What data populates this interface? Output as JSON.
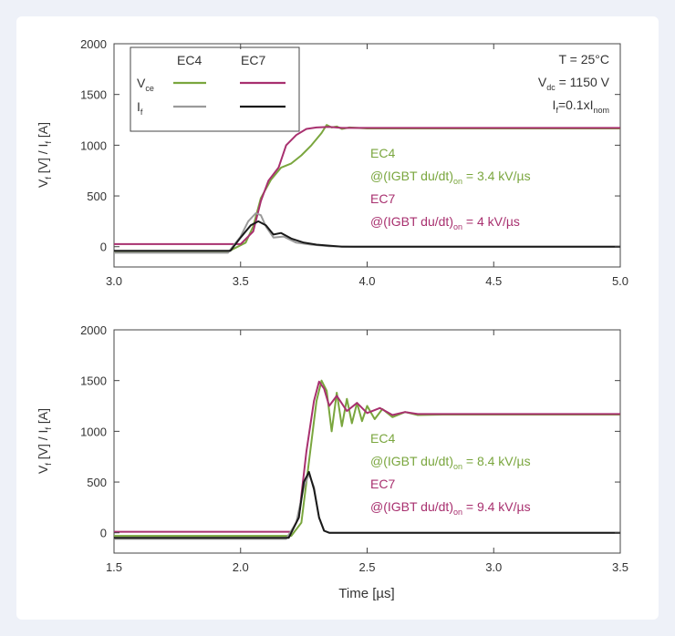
{
  "colors": {
    "ec4": "#7aa63e",
    "ec7": "#a8306f",
    "if_ec4": "#9a9a9a",
    "if_ec7": "#1a1a1a",
    "axis": "#444444"
  },
  "legend": {
    "col_ec4": "EC4",
    "col_ec7": "EC7",
    "row_vce_main": "V",
    "row_vce_sub": "ce",
    "row_if_main": "I",
    "row_if_sub": "f"
  },
  "conditions": {
    "temp": "T = 25°C",
    "vdc_main": "V",
    "vdc_sub": "dc",
    "vdc_val": " = 1150 V",
    "if_main": "I",
    "if_sub": "f",
    "if_mid": "=0.1xI",
    "if_sub2": "nom"
  },
  "chart_data": [
    {
      "type": "line",
      "xlabel": "",
      "ylabel_parts": [
        "V",
        "f",
        " [V] / I",
        "f",
        " [A]"
      ],
      "xlim": [
        3.0,
        5.0
      ],
      "ylim": [
        -200,
        2000
      ],
      "xticks": [
        3.0,
        3.5,
        4.0,
        4.5,
        5.0
      ],
      "xtick_labels": [
        "3.0",
        "3.5",
        "4.0",
        "4.5",
        "5.0"
      ],
      "yticks": [
        0,
        500,
        1000,
        1500,
        2000
      ],
      "ytick_labels": [
        "0",
        "500",
        "1000",
        "1500",
        "2000"
      ],
      "annotations": {
        "ec4_name": "EC4",
        "ec4_rate_pre": "@(IGBT du/dt)",
        "ec4_rate_sub": "on",
        "ec4_rate_post": " = 3.4 kV/µs",
        "ec7_name": "EC7",
        "ec7_rate_pre": "@(IGBT du/dt)",
        "ec7_rate_sub": "on",
        "ec7_rate_post": " = 4 kV/µs"
      },
      "series": [
        {
          "name": "Vce EC4",
          "color_key": "ec4",
          "x": [
            3.0,
            3.45,
            3.52,
            3.55,
            3.58,
            3.62,
            3.66,
            3.7,
            3.74,
            3.78,
            3.82,
            3.84,
            3.86,
            3.88,
            3.9,
            3.93,
            4.0,
            5.0
          ],
          "y": [
            -50,
            -50,
            40,
            200,
            480,
            660,
            780,
            820,
            900,
            1000,
            1120,
            1200,
            1175,
            1185,
            1160,
            1175,
            1165,
            1165
          ]
        },
        {
          "name": "Vce EC7",
          "color_key": "ec7",
          "x": [
            3.0,
            3.5,
            3.55,
            3.58,
            3.61,
            3.65,
            3.68,
            3.72,
            3.76,
            3.8,
            3.85,
            3.9,
            4.0,
            5.0
          ],
          "y": [
            25,
            25,
            150,
            450,
            650,
            780,
            1000,
            1100,
            1160,
            1175,
            1180,
            1170,
            1170,
            1170
          ]
        },
        {
          "name": "If EC4",
          "color_key": "if_ec4",
          "x": [
            3.0,
            3.45,
            3.5,
            3.53,
            3.56,
            3.58,
            3.6,
            3.63,
            3.67,
            3.72,
            3.78,
            3.85,
            3.95,
            5.0
          ],
          "y": [
            -60,
            -60,
            100,
            250,
            330,
            310,
            200,
            90,
            100,
            40,
            20,
            5,
            0,
            0
          ]
        },
        {
          "name": "If EC7",
          "color_key": "if_ec7",
          "x": [
            3.0,
            3.46,
            3.5,
            3.54,
            3.57,
            3.6,
            3.63,
            3.66,
            3.7,
            3.75,
            3.8,
            3.9,
            5.0
          ],
          "y": [
            -40,
            -40,
            90,
            210,
            250,
            210,
            120,
            135,
            80,
            40,
            20,
            0,
            0
          ]
        }
      ]
    },
    {
      "type": "line",
      "xlabel": "Time [µs]",
      "ylabel_parts": [
        "V",
        "f",
        " [V] / I",
        "f",
        " [A]"
      ],
      "xlim": [
        1.5,
        3.5
      ],
      "ylim": [
        -200,
        2000
      ],
      "xticks": [
        1.5,
        2.0,
        2.5,
        3.0,
        3.5
      ],
      "xtick_labels": [
        "1.5",
        "2.0",
        "2.5",
        "3.0",
        "3.5"
      ],
      "yticks": [
        0,
        500,
        1000,
        1500,
        2000
      ],
      "ytick_labels": [
        "0",
        "500",
        "1000",
        "1500",
        "2000"
      ],
      "annotations": {
        "ec4_name": "EC4",
        "ec4_rate_pre": "@(IGBT du/dt)",
        "ec4_rate_sub": "on",
        "ec4_rate_post": " = 8.4 kV/µs",
        "ec7_name": "EC7",
        "ec7_rate_pre": "@(IGBT du/dt)",
        "ec7_rate_sub": "on",
        "ec7_rate_post": " = 9.4 kV/µs"
      },
      "series": [
        {
          "name": "Vce EC4",
          "color_key": "ec4",
          "x": [
            1.5,
            2.2,
            2.24,
            2.27,
            2.3,
            2.32,
            2.34,
            2.36,
            2.38,
            2.4,
            2.42,
            2.44,
            2.46,
            2.48,
            2.5,
            2.53,
            2.56,
            2.6,
            2.65,
            2.7,
            2.8,
            3.5
          ],
          "y": [
            -30,
            -30,
            100,
            700,
            1300,
            1500,
            1400,
            1000,
            1380,
            1050,
            1320,
            1080,
            1280,
            1100,
            1250,
            1120,
            1220,
            1140,
            1190,
            1160,
            1165,
            1165
          ]
        },
        {
          "name": "Vce EC7",
          "color_key": "ec7",
          "x": [
            1.5,
            2.2,
            2.23,
            2.26,
            2.29,
            2.31,
            2.33,
            2.35,
            2.38,
            2.42,
            2.46,
            2.5,
            2.55,
            2.6,
            2.65,
            2.7,
            2.8,
            3.5
          ],
          "y": [
            10,
            10,
            150,
            800,
            1300,
            1490,
            1420,
            1250,
            1350,
            1200,
            1280,
            1180,
            1230,
            1160,
            1190,
            1170,
            1170,
            1170
          ]
        },
        {
          "name": "If EC4",
          "color_key": "if_ec4",
          "x": [
            1.5,
            2.18,
            2.22,
            2.25,
            2.27,
            2.29,
            2.31,
            2.33,
            2.35,
            2.4,
            3.5
          ],
          "y": [
            -60,
            -60,
            100,
            450,
            580,
            450,
            150,
            20,
            0,
            0,
            0
          ]
        },
        {
          "name": "If EC7",
          "color_key": "if_ec7",
          "x": [
            1.5,
            2.19,
            2.23,
            2.25,
            2.27,
            2.29,
            2.31,
            2.33,
            2.35,
            2.4,
            3.5
          ],
          "y": [
            -50,
            -50,
            150,
            500,
            600,
            430,
            150,
            20,
            0,
            0,
            0
          ]
        }
      ]
    }
  ]
}
